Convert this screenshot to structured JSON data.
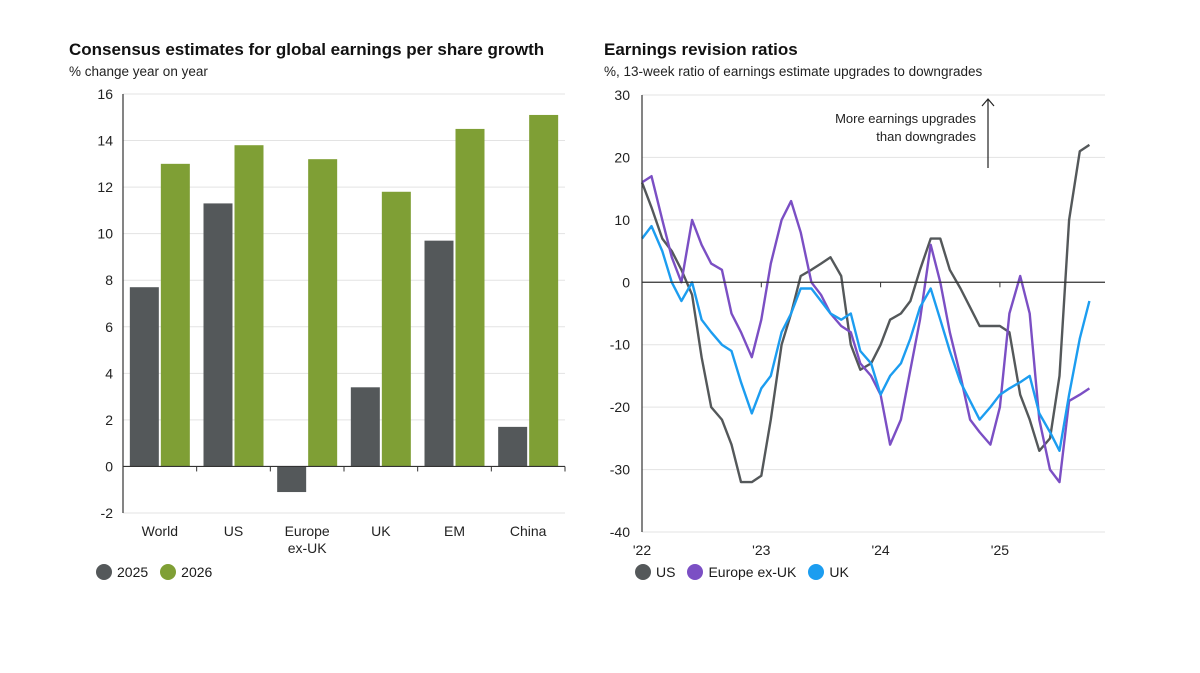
{
  "chart_data": [
    {
      "type": "bar",
      "title": "Consensus estimates for global earnings per share growth",
      "subtitle": "% change year on year",
      "xlabel": "",
      "ylabel": "",
      "ylim": [
        -2,
        16
      ],
      "yticks": [
        16,
        14,
        12,
        10,
        8,
        6,
        4,
        2,
        0,
        -2
      ],
      "grid": true,
      "categories": [
        "World",
        "US",
        "Europe ex-UK",
        "UK",
        "EM",
        "China"
      ],
      "category_labels": [
        [
          "World"
        ],
        [
          "US"
        ],
        [
          "Europe",
          "ex-UK"
        ],
        [
          "UK"
        ],
        [
          "EM"
        ],
        [
          "China"
        ]
      ],
      "series": [
        {
          "name": "2025",
          "color": "#54585a",
          "values": [
            7.7,
            11.3,
            -1.1,
            3.4,
            9.7,
            1.7
          ]
        },
        {
          "name": "2026",
          "color": "#7f9f35",
          "values": [
            13.0,
            13.8,
            13.2,
            11.8,
            14.5,
            15.1
          ]
        }
      ],
      "legend_position": "bottom-left"
    },
    {
      "type": "line",
      "title": "Earnings revision ratios",
      "subtitle": "%, 13-week ratio of earnings estimate upgrades to downgrades",
      "xlabel": "",
      "ylabel": "",
      "ylim": [
        -40,
        30
      ],
      "yticks": [
        30,
        20,
        10,
        0,
        -10,
        -20,
        -30,
        -40
      ],
      "xlim": [
        2022.0,
        2025.85
      ],
      "xticks": [
        2022,
        2023,
        2024,
        2025
      ],
      "xtick_labels": [
        "'22",
        "'23",
        "'24",
        "'25"
      ],
      "grid": true,
      "annotation": {
        "lines": [
          "More earnings upgrades",
          "than downgrades"
        ],
        "arrow": "up"
      },
      "x": [
        2022.0,
        2022.08,
        2022.17,
        2022.25,
        2022.33,
        2022.42,
        2022.5,
        2022.58,
        2022.67,
        2022.75,
        2022.83,
        2022.92,
        2023.0,
        2023.08,
        2023.17,
        2023.25,
        2023.33,
        2023.42,
        2023.5,
        2023.58,
        2023.67,
        2023.75,
        2023.83,
        2023.92,
        2024.0,
        2024.08,
        2024.17,
        2024.25,
        2024.33,
        2024.42,
        2024.5,
        2024.58,
        2024.67,
        2024.75,
        2024.83,
        2024.92,
        2025.0,
        2025.08,
        2025.17,
        2025.25,
        2025.33,
        2025.42,
        2025.5,
        2025.58,
        2025.67,
        2025.75
      ],
      "series": [
        {
          "name": "US",
          "color": "#54585a",
          "values": [
            16,
            12,
            7,
            5,
            2,
            -2,
            -12,
            -20,
            -22,
            -26,
            -32,
            -32,
            -31,
            -22,
            -10,
            -5,
            1,
            2,
            3,
            4,
            1,
            -10,
            -14,
            -13,
            -10,
            -6,
            -5,
            -3,
            2,
            7,
            7,
            2,
            -1,
            -4,
            -7,
            -7,
            -7,
            -8,
            -18,
            -22,
            -27,
            -25,
            -15,
            10,
            21,
            22
          ]
        },
        {
          "name": "Europe ex-UK",
          "color": "#7b4fc4",
          "values": [
            16,
            17,
            10,
            4,
            0,
            10,
            6,
            3,
            2,
            -5,
            -8,
            -12,
            -6,
            3,
            10,
            13,
            8,
            0,
            -2,
            -5,
            -7,
            -8,
            -13,
            -15,
            -18,
            -26,
            -22,
            -14,
            -6,
            6,
            0,
            -8,
            -15,
            -22,
            -24,
            -26,
            -20,
            -5,
            1,
            -5,
            -22,
            -30,
            -32,
            -19,
            -18,
            -17
          ]
        },
        {
          "name": "UK",
          "color": "#1c9df0",
          "values": [
            7,
            9,
            5,
            0,
            -3,
            0,
            -6,
            -8,
            -10,
            -11,
            -16,
            -21,
            -17,
            -15,
            -8,
            -5,
            -1,
            -1,
            -3,
            -5,
            -6,
            -5,
            -11,
            -13,
            -18,
            -15,
            -13,
            -9,
            -4,
            -1,
            -6,
            -11,
            -16,
            -19,
            -22,
            -20,
            -18,
            -17,
            -16,
            -15,
            -21,
            -24,
            -27,
            -18,
            -9,
            -3
          ]
        }
      ],
      "legend_position": "bottom-left"
    }
  ]
}
